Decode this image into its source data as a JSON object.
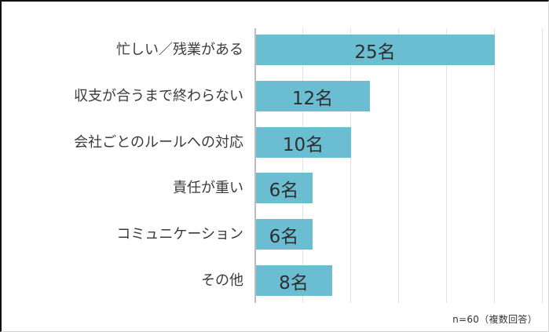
{
  "chart_data": {
    "type": "bar",
    "orientation": "horizontal",
    "title": "",
    "xlabel": "",
    "ylabel": "",
    "categories": [
      "忙しい／残業がある",
      "収支が合うまで終わらない",
      "会社ごとのルールへの対応",
      "責任が重い",
      "コミュニケーション",
      "その他"
    ],
    "values": [
      25,
      12,
      10,
      6,
      6,
      8
    ],
    "value_labels": [
      "25名",
      "12名",
      "10名",
      "6名",
      "6名",
      "8名"
    ],
    "unit": "名",
    "xlim": [
      0,
      30
    ],
    "x_gridlines": [
      0,
      5,
      10,
      15,
      20,
      25,
      30
    ],
    "grid": true,
    "legend": null,
    "bar_color": "#6bbdd1",
    "annotation": "n=60（複数回答）"
  },
  "note": "n=60（複数回答）"
}
